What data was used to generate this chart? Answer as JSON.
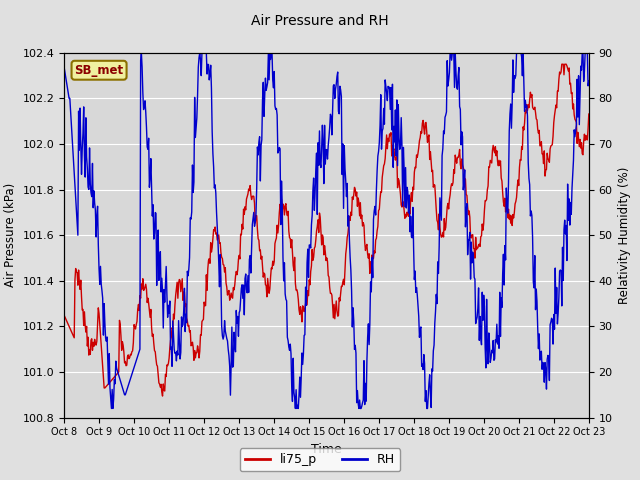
{
  "title": "Air Pressure and RH",
  "xlabel": "Time",
  "ylabel_left": "Air Pressure (kPa)",
  "ylabel_right": "Relativity Humidity (%)",
  "station_label": "SB_met",
  "legend_labels": [
    "li75_p",
    "RH"
  ],
  "legend_colors": [
    "#cc0000",
    "#0000cc"
  ],
  "ylim_left": [
    100.8,
    102.4
  ],
  "ylim_right": [
    10,
    90
  ],
  "yticks_left": [
    100.8,
    101.0,
    101.2,
    101.4,
    101.6,
    101.8,
    102.0,
    102.2,
    102.4
  ],
  "yticks_right": [
    10,
    20,
    30,
    40,
    50,
    60,
    70,
    80,
    90
  ],
  "xtick_labels": [
    "Oct 8",
    "Oct 9",
    "Oct 10",
    "Oct 11",
    "Oct 12",
    "Oct 13",
    "Oct 14",
    "Oct 15",
    "Oct 16",
    "Oct 17",
    "Oct 18",
    "Oct 19",
    "Oct 20",
    "Oct 21",
    "Oct 22",
    "Oct 23"
  ],
  "bg_color": "#e0e0e0",
  "plot_bg_color": "#d8d8d8",
  "line_color_pressure": "#cc0000",
  "line_color_rh": "#0000cc",
  "line_width": 1.0
}
